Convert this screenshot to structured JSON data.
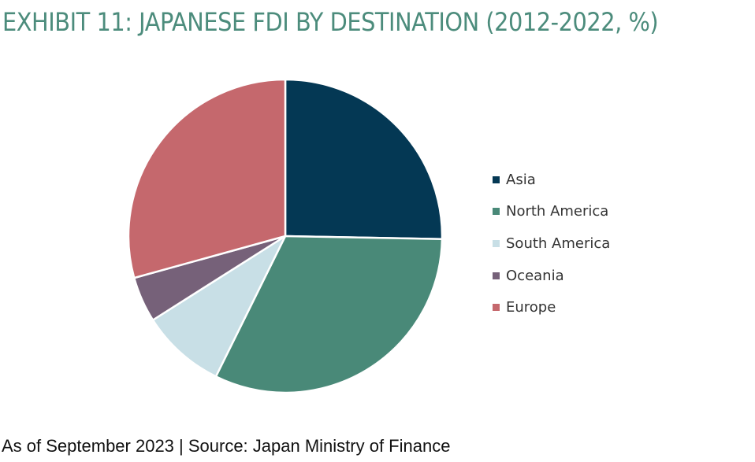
{
  "title": "EXHIBIT 11: JAPANESE FDI BY DESTINATION (2012-2022, %)",
  "footer": "As of September 2023 | Source: Japan Ministry of Finance",
  "colors": {
    "title": "#4c8c7c",
    "slice_border": "#ffffff"
  },
  "chart_data": {
    "type": "pie",
    "title": "EXHIBIT 11: JAPANESE FDI BY DESTINATION (2012-2022, %)",
    "legend_position": "right",
    "start_angle": "12 o'clock",
    "direction": "clockwise",
    "slices": [
      {
        "label": "Asia",
        "value": 25.3,
        "color": "#043854"
      },
      {
        "label": "North America",
        "value": 32.0,
        "color": "#498978"
      },
      {
        "label": "South America",
        "value": 8.7,
        "color": "#c8dfe6"
      },
      {
        "label": "Oceania",
        "value": 4.7,
        "color": "#766179"
      },
      {
        "label": "Europe",
        "value": 29.3,
        "color": "#c5686d"
      }
    ]
  }
}
